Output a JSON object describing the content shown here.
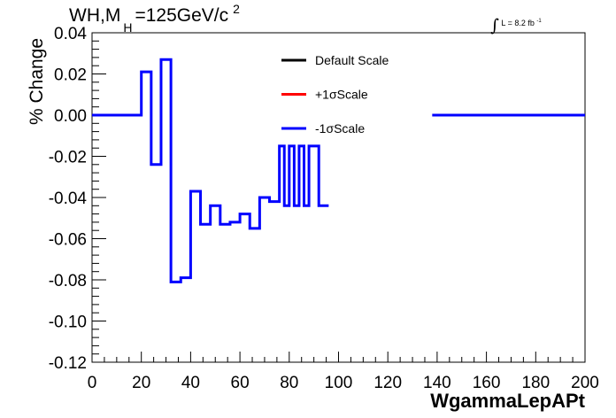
{
  "title": {
    "main": "WH,M",
    "sub": "H",
    "rest": "=125GeV/c",
    "sup": "2"
  },
  "lumi": {
    "symbol": "∫",
    "text": "L = 8.2 fb",
    "sup": "-1"
  },
  "chart_data": {
    "type": "line",
    "xlabel": "WgammaLepAPt",
    "ylabel": "% Change",
    "xlim": [
      0,
      200
    ],
    "ylim": [
      -0.12,
      0.04
    ],
    "x_ticks": [
      "0",
      "20",
      "40",
      "60",
      "80",
      "100",
      "120",
      "140",
      "160",
      "180",
      "200"
    ],
    "y_ticks": [
      "0.04",
      "0.02",
      "0.00",
      "-0.02",
      "-0.04",
      "-0.06",
      "-0.08",
      "-0.10",
      "-0.12"
    ],
    "legend": {
      "position": "top-center",
      "entries": [
        {
          "label": "Default Scale",
          "color": "#000000"
        },
        {
          "label": "+1σScale",
          "color": "#ff0000"
        },
        {
          "label": "-1σScale",
          "color": "#0000ff"
        }
      ]
    },
    "series": [
      {
        "name": "-1σScale",
        "color": "#0000ff",
        "bins": [
          {
            "x0": 0,
            "x1": 20,
            "y": 0.0
          },
          {
            "x0": 20,
            "x1": 24,
            "y": 0.021
          },
          {
            "x0": 24,
            "x1": 28,
            "y": -0.024
          },
          {
            "x0": 28,
            "x1": 32,
            "y": 0.027
          },
          {
            "x0": 32,
            "x1": 36,
            "y": -0.081
          },
          {
            "x0": 36,
            "x1": 40,
            "y": -0.079
          },
          {
            "x0": 40,
            "x1": 44,
            "y": -0.037
          },
          {
            "x0": 44,
            "x1": 48,
            "y": -0.053
          },
          {
            "x0": 48,
            "x1": 52,
            "y": -0.044
          },
          {
            "x0": 52,
            "x1": 56,
            "y": -0.053
          },
          {
            "x0": 56,
            "x1": 60,
            "y": -0.052
          },
          {
            "x0": 60,
            "x1": 64,
            "y": -0.048
          },
          {
            "x0": 64,
            "x1": 68,
            "y": -0.055
          },
          {
            "x0": 68,
            "x1": 72,
            "y": -0.04
          },
          {
            "x0": 72,
            "x1": 76,
            "y": -0.042
          },
          {
            "x0": 76,
            "x1": 78,
            "y": -0.015
          },
          {
            "x0": 78,
            "x1": 80,
            "y": -0.044
          },
          {
            "x0": 80,
            "x1": 82,
            "y": -0.015
          },
          {
            "x0": 82,
            "x1": 84,
            "y": -0.044
          },
          {
            "x0": 84,
            "x1": 86,
            "y": -0.015
          },
          {
            "x0": 86,
            "x1": 88,
            "y": -0.044
          },
          {
            "x0": 88,
            "x1": 92,
            "y": -0.015
          },
          {
            "x0": 92,
            "x1": 96,
            "y": -0.044
          },
          {
            "x0": 138,
            "x1": 200,
            "y": 0.0
          }
        ]
      }
    ]
  }
}
